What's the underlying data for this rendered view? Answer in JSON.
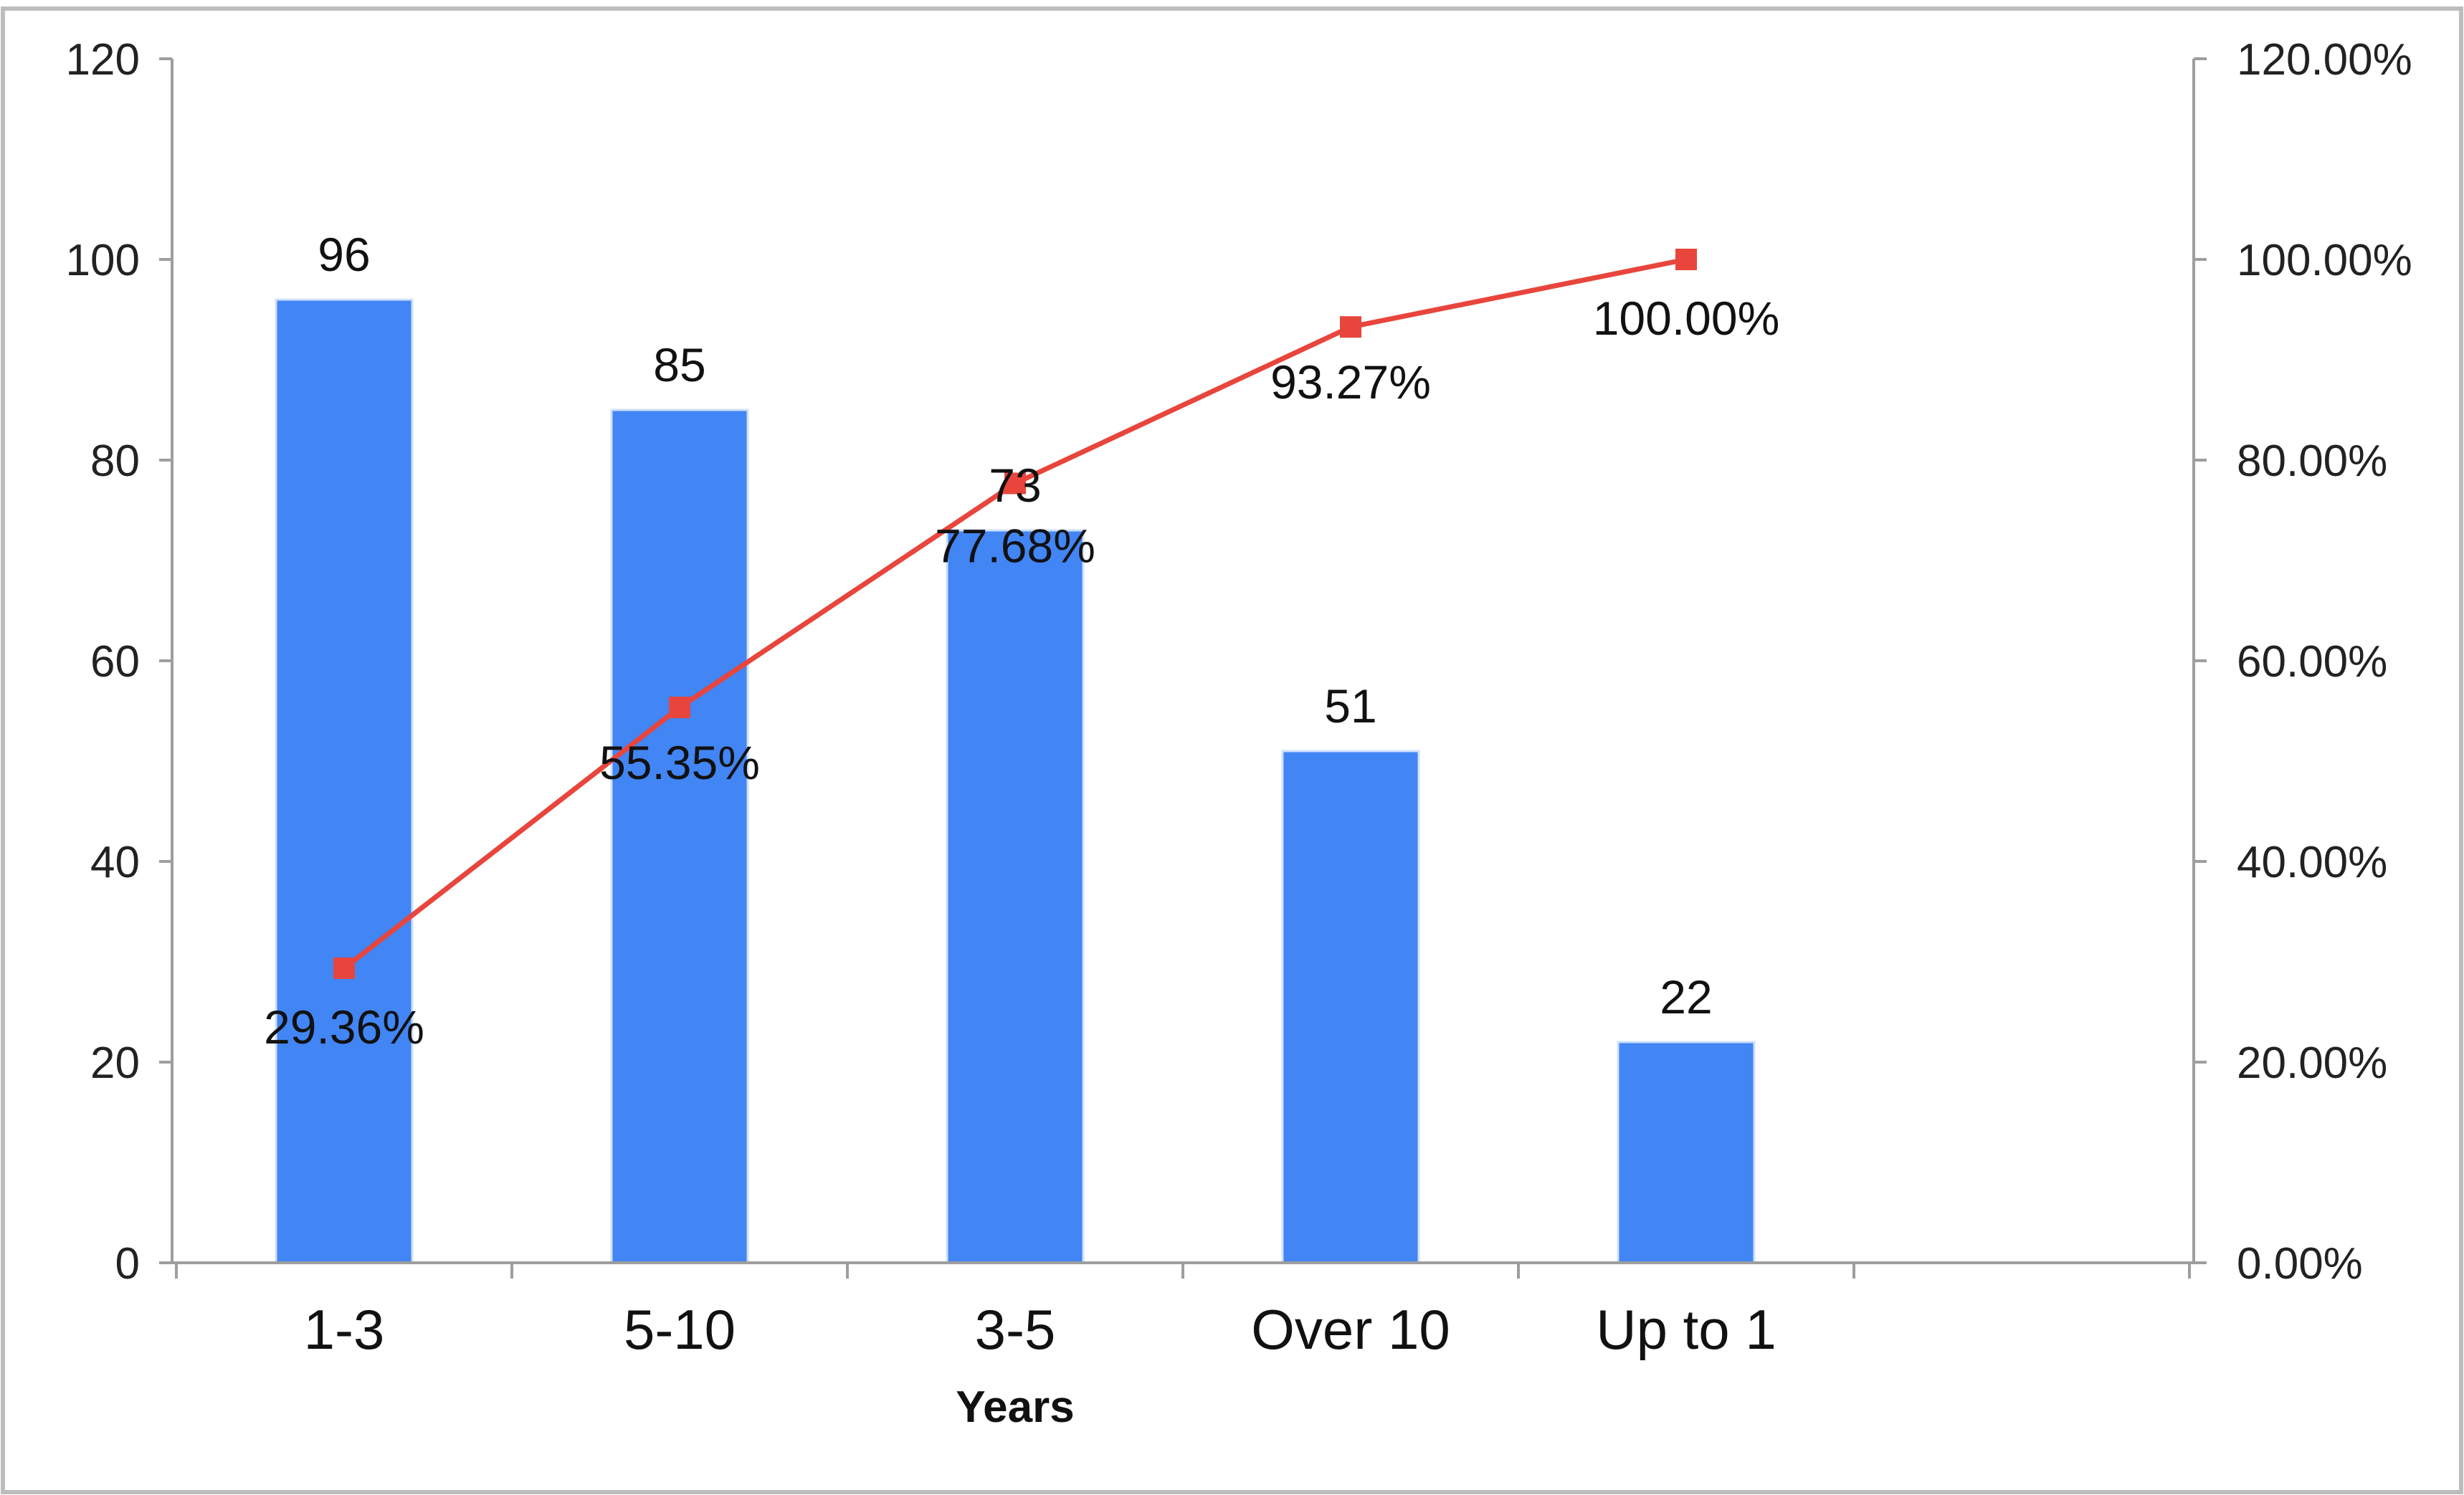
{
  "chart_data": {
    "type": "bar",
    "categories": [
      "1-3",
      "5-10",
      "3-5",
      "Over 10",
      "Up to 1"
    ],
    "series": [
      {
        "type": "bar",
        "axis": "left",
        "values": [
          96,
          85,
          73,
          51,
          22
        ],
        "labels": [
          "96",
          "85",
          "73",
          "51",
          "22"
        ],
        "color": "#4285F4"
      },
      {
        "type": "line",
        "axis": "right",
        "values": [
          29.36,
          55.35,
          77.68,
          93.27,
          100.0
        ],
        "labels": [
          "29.36%",
          "55.35%",
          "77.68%",
          "93.27%",
          "100.00%"
        ],
        "color": "#E8453C"
      }
    ],
    "xlabel": "Years",
    "ylim": [
      0,
      120
    ],
    "y2lim": [
      0,
      120
    ],
    "yticks": [
      "0",
      "20",
      "40",
      "60",
      "80",
      "100",
      "120"
    ],
    "y2ticks": [
      "0.00%",
      "20.00%",
      "40.00%",
      "60.00%",
      "80.00%",
      "100.00%",
      "120.00%"
    ],
    "grid": false,
    "legend": "none",
    "colors": {
      "frame": "#bdbdbd",
      "axis": "#9e9e9e"
    }
  }
}
